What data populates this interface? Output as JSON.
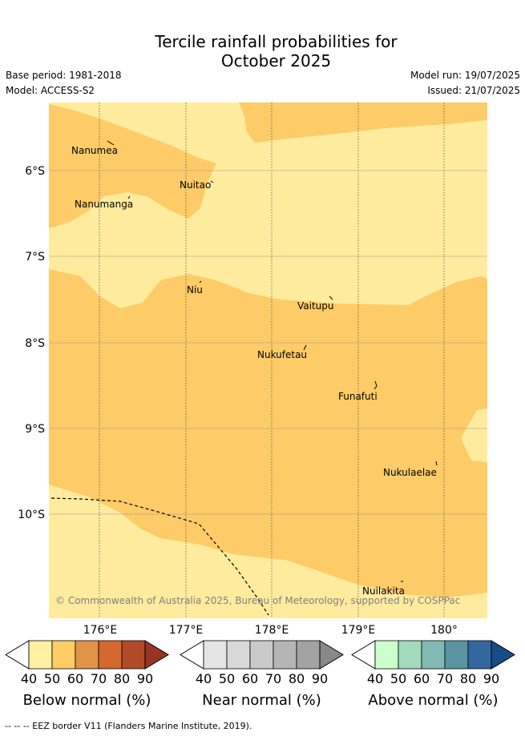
{
  "title_line1": "Tercile rainfall probabilities for",
  "title_line2": "October 2025",
  "base_period": "Base period: 1981-2018",
  "model": "Model: ACCESS-S2",
  "model_run": "Model run: 19/07/2025",
  "issued": "Issued: 21/07/2025",
  "map": {
    "lat_labels": [
      "6°S",
      "7°S",
      "8°S",
      "9°S",
      "10°S"
    ],
    "lon_labels": [
      "176°E",
      "177°E",
      "178°E",
      "179°E",
      "180°"
    ],
    "places": [
      "Nanumea",
      "Nuitao",
      "Nanumanga",
      "Niu",
      "Vaitupu",
      "Nukufetau",
      "Funafuti",
      "Nukulaelae",
      "Nuilakita"
    ],
    "copyright": "© Commonwealth of Australia 2025, Bureau of Meteorology, supported by COSPPac",
    "colors": {
      "below_40": "#fdeb9e",
      "below_50": "#fdcb67",
      "border": "#000000"
    }
  },
  "colorbars": [
    {
      "title": "Below normal (%)",
      "ticks": [
        "40",
        "50",
        "60",
        "70",
        "80",
        "90"
      ],
      "colors": [
        "#fff0a3",
        "#ffcc66",
        "#e09448",
        "#d4682f",
        "#b04a29",
        "#983423"
      ]
    },
    {
      "title": "Near normal (%)",
      "ticks": [
        "40",
        "50",
        "60",
        "70",
        "80",
        "90"
      ],
      "colors": [
        "#e5e5e5",
        "#d8d8d8",
        "#cacaca",
        "#b5b5b5",
        "#a2a2a2",
        "#888888"
      ]
    },
    {
      "title": "Above normal (%)",
      "ticks": [
        "40",
        "50",
        "60",
        "70",
        "80",
        "90"
      ],
      "colors": [
        "#ccffcc",
        "#a3d9bd",
        "#82b9b3",
        "#5a93a1",
        "#3467a0",
        "#174d87"
      ]
    }
  ],
  "footer": "--  --  -- EEZ border V11 (Flanders Marine Institute, 2019)."
}
